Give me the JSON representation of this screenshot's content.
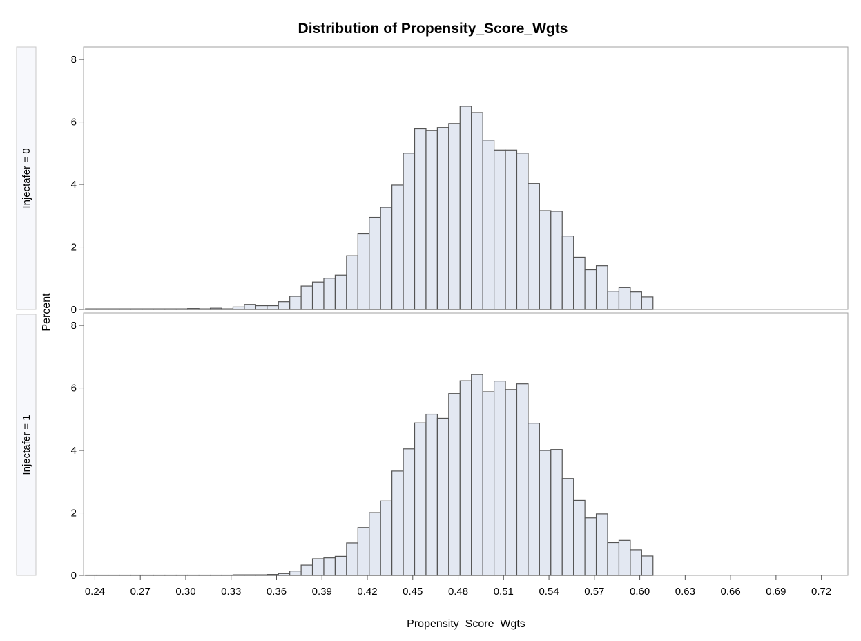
{
  "chart_data": {
    "type": "bar",
    "title": "Distribution of Propensity_Score_Wgts",
    "xlabel": "Propensity_Score_Wgts",
    "ylabel": "Percent",
    "bar_color": "#e3e8f2",
    "bar_edge_color": "#545454",
    "bin_width": 0.0075,
    "first_bin_center": 0.2375,
    "xlim": [
      0.2325,
      0.7375
    ],
    "ylim": [
      0,
      8.4
    ],
    "x_ticks": [
      "0.24",
      "0.27",
      "0.30",
      "0.33",
      "0.36",
      "0.39",
      "0.42",
      "0.45",
      "0.48",
      "0.51",
      "0.54",
      "0.57",
      "0.60",
      "0.63",
      "0.66",
      "0.69",
      "0.72"
    ],
    "x_tick_values": [
      0.24,
      0.27,
      0.3,
      0.33,
      0.36,
      0.39,
      0.42,
      0.45,
      0.48,
      0.51,
      0.54,
      0.57,
      0.6,
      0.63,
      0.66,
      0.69,
      0.72
    ],
    "y_ticks": [
      "0",
      "2",
      "4",
      "6",
      "8"
    ],
    "y_tick_values": [
      0,
      2,
      4,
      6,
      8
    ],
    "panels": [
      {
        "label": "Injectafer = 0",
        "values": [
          0.02,
          0.02,
          0.02,
          0.02,
          0.02,
          0.02,
          0.02,
          0.02,
          0.02,
          0.03,
          0.02,
          0.04,
          0.02,
          0.08,
          0.16,
          0.12,
          0.12,
          0.25,
          0.42,
          0.75,
          0.88,
          1.0,
          1.1,
          1.72,
          2.42,
          2.95,
          3.27,
          3.98,
          5.0,
          5.78,
          5.73,
          5.82,
          5.95,
          6.5,
          6.3,
          5.42,
          5.1,
          5.1,
          5.0,
          4.03,
          3.16,
          3.14,
          2.35,
          1.67,
          1.27,
          1.4,
          0.58,
          0.7,
          0.56,
          0.4
        ]
      },
      {
        "label": "Injectafer = 1",
        "values": [
          0.01,
          0.01,
          0.01,
          0.01,
          0.01,
          0.01,
          0.01,
          0.01,
          0.01,
          0.01,
          0.01,
          0.01,
          0.01,
          0.02,
          0.02,
          0.02,
          0.03,
          0.06,
          0.14,
          0.33,
          0.53,
          0.56,
          0.61,
          1.04,
          1.53,
          2.01,
          2.38,
          3.34,
          4.05,
          4.88,
          5.16,
          5.03,
          5.82,
          6.23,
          6.43,
          5.88,
          6.22,
          5.95,
          6.13,
          4.87,
          4.0,
          4.03,
          3.1,
          2.4,
          1.84,
          1.97,
          1.05,
          1.12,
          0.82,
          0.62
        ]
      }
    ]
  }
}
